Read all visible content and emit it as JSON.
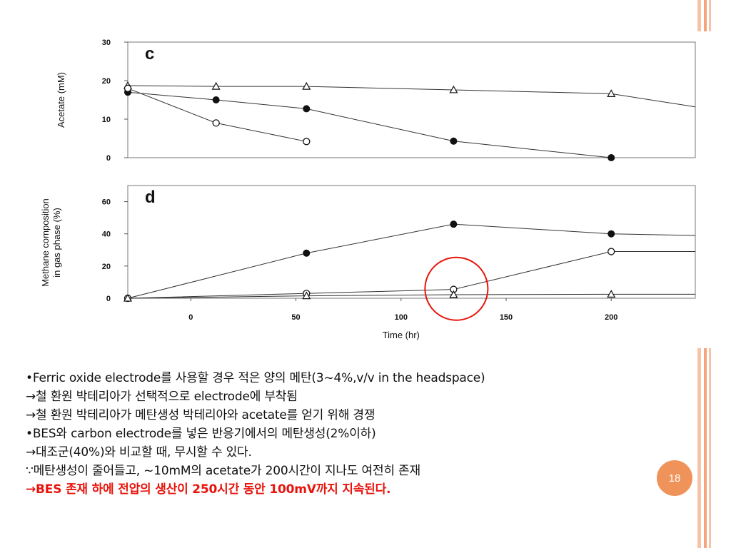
{
  "slide": {
    "page_number": "18",
    "accent_color": "#f3a57c",
    "badge_color": "#f0935a",
    "highlight_color": "#e8140c",
    "bullets": [
      {
        "text": "•Ferric oxide electrode를 사용할 경우 적은 양의 메탄(3~4%,v/v in the headspace)",
        "style": "normal"
      },
      {
        "text": "→철 환원 박테리아가 선택적으로 electrode에 부착됨",
        "style": "normal"
      },
      {
        "text": "→철 환원 박테리아가 메탄생성 박테리아와 acetate를 얻기 위해 경쟁",
        "style": "normal"
      },
      {
        "text": "•BES와 carbon electrode를 넣은 반응기에서의 메탄생성(2%이하)",
        "style": "normal"
      },
      {
        "text": "→대조군(40%)와 비교할 때, 무시할 수 있다.",
        "style": "normal"
      },
      {
        "text": "∵메탄생성이 줄어들고, ~10mM의 acetate가 200시간이 지나도 여전히 존재",
        "style": "normal"
      },
      {
        "text": "→BES 존재 하에 전압의 생산이 250시간 동안 100mV까지 지속된다.",
        "style": "red"
      }
    ]
  },
  "chart_data": [
    {
      "type": "line",
      "panel_label": "c",
      "ylabel": "Acetate (mM)",
      "xlabel": "",
      "ylim": [
        0,
        30
      ],
      "xlim": [
        -30,
        240
      ],
      "yticks": [
        "0",
        "10",
        "20",
        "30"
      ],
      "yticks_values": [
        0,
        10,
        20,
        30
      ],
      "grid": false,
      "series": [
        {
          "marker": "triangle-open",
          "x": [
            -30,
            12,
            55,
            125,
            200,
            240
          ],
          "y": [
            18.7,
            18.5,
            18.5,
            17.6,
            16.6,
            13.2
          ]
        },
        {
          "marker": "circle-filled",
          "x": [
            -30,
            12,
            55,
            125,
            200
          ],
          "y": [
            17,
            15,
            12.7,
            4.3,
            0
          ]
        },
        {
          "marker": "circle-open",
          "x": [
            -30,
            12,
            55
          ],
          "y": [
            18,
            9,
            4.2
          ]
        }
      ]
    },
    {
      "type": "line",
      "panel_label": "d",
      "ylabel": "Methane composition in gas phase (%)",
      "xlabel": "Time (hr)",
      "ylim": [
        0,
        70
      ],
      "xlim": [
        -30,
        240
      ],
      "yticks": [
        "0",
        "20",
        "40",
        "60"
      ],
      "yticks_values": [
        0,
        20,
        40,
        60
      ],
      "xticks": [
        "0",
        "50",
        "100",
        "150",
        "200"
      ],
      "xticks_values": [
        0,
        50,
        100,
        150,
        200
      ],
      "grid": false,
      "highlight": {
        "x": 125,
        "y": 5,
        "shape": "circle"
      },
      "series": [
        {
          "marker": "circle-filled",
          "x": [
            -30,
            55,
            125,
            200,
            240
          ],
          "y": [
            0,
            28,
            46,
            40,
            39
          ]
        },
        {
          "marker": "circle-open",
          "x": [
            -30,
            55,
            125,
            200,
            240
          ],
          "y": [
            0,
            3,
            5.5,
            29,
            29
          ]
        },
        {
          "marker": "triangle-open",
          "x": [
            -30,
            55,
            125,
            200,
            240
          ],
          "y": [
            0,
            1.5,
            2.2,
            2.5,
            2.5
          ]
        }
      ]
    }
  ]
}
